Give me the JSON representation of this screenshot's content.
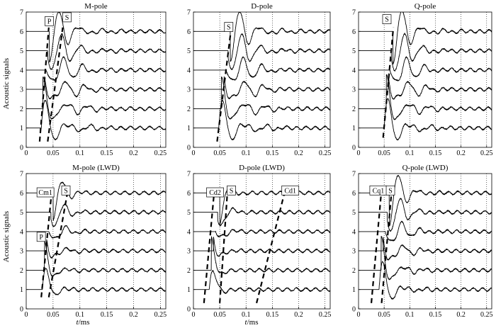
{
  "figure": {
    "ylabel": "Acoustic signals",
    "xlabel_italic": "t",
    "xlabel_rest": "/ms"
  },
  "chart_data": [
    {
      "type": "line",
      "title": "M-pole",
      "xlim": [
        0,
        0.26
      ],
      "ylim": [
        0,
        7
      ],
      "xticks": [
        "0",
        "0.05",
        "0.1",
        "0.15",
        "0.2",
        "0.25"
      ],
      "yticks": [
        "0",
        "1",
        "2",
        "3",
        "4",
        "5",
        "6",
        "7"
      ],
      "grid": "vertical dotted",
      "series_offsets": [
        1,
        2,
        3,
        4,
        5,
        6
      ],
      "labels": [
        "P",
        "S"
      ],
      "arrivals": [
        {
          "label": "P",
          "x": [
            0.025,
            0.042
          ],
          "y": [
            0.3,
            6.2
          ]
        },
        {
          "label": "S",
          "x": [
            0.04,
            0.068
          ],
          "y": [
            0.3,
            6.2
          ]
        }
      ],
      "onset": [
        0.028,
        0.031,
        0.034,
        0.037,
        0.04,
        0.043
      ],
      "wave": {
        "amp": 0.55,
        "freq": 25,
        "decay": 35
      }
    },
    {
      "type": "line",
      "title": "D-pole",
      "xlim": [
        0,
        0.26
      ],
      "ylim": [
        0,
        7
      ],
      "xticks": [
        "0",
        "0.05",
        "0.1",
        "0.15",
        "0.2",
        "0.25"
      ],
      "yticks": [
        "0",
        "1",
        "2",
        "3",
        "4",
        "5",
        "6",
        "7"
      ],
      "grid": "vertical dotted",
      "series_offsets": [
        1,
        2,
        3,
        4,
        5,
        6
      ],
      "labels": [
        "S"
      ],
      "arrivals": [
        {
          "label": "S",
          "x": [
            0.045,
            0.072
          ],
          "y": [
            0.3,
            6.2
          ]
        }
      ],
      "onset": [
        0.048,
        0.053,
        0.058,
        0.062,
        0.066,
        0.07
      ],
      "wave": {
        "amp": 0.55,
        "freq": 25,
        "decay": 35
      }
    },
    {
      "type": "line",
      "title": "Q-pole",
      "xlim": [
        0,
        0.26
      ],
      "ylim": [
        0,
        7
      ],
      "xticks": [
        "0",
        "0.05",
        "0.1",
        "0.15",
        "0.2",
        "0.25"
      ],
      "yticks": [
        "0",
        "1",
        "2",
        "3",
        "4",
        "5",
        "6",
        "7"
      ],
      "grid": "vertical dotted",
      "series_offsets": [
        1,
        2,
        3,
        4,
        5,
        6
      ],
      "labels": [
        "S"
      ],
      "arrivals": [
        {
          "label": "S",
          "x": [
            0.048,
            0.068
          ],
          "y": [
            0.5,
            6.2
          ]
        }
      ],
      "onset": [
        0.05,
        0.054,
        0.058,
        0.061,
        0.064,
        0.067
      ],
      "wave": {
        "amp": 0.6,
        "freq": 25,
        "decay": 32
      }
    },
    {
      "type": "line",
      "title": "M-pole (LWD)",
      "xlim": [
        0,
        0.26
      ],
      "ylim": [
        0,
        7
      ],
      "xticks": [
        "0",
        "0.05",
        "0.1",
        "0.15",
        "0.2",
        "0.25"
      ],
      "yticks": [
        "0",
        "1",
        "2",
        "3",
        "4",
        "5",
        "6",
        "7"
      ],
      "grid": "vertical dotted",
      "series_offsets": [
        1,
        2,
        3,
        4,
        5,
        6
      ],
      "labels": [
        "Cm1",
        "P",
        "S"
      ],
      "arrivals": [
        {
          "label": "P",
          "x": [
            0.028,
            0.048
          ],
          "y": [
            0.6,
            6.2
          ]
        },
        {
          "label": "S",
          "x": [
            0.042,
            0.078
          ],
          "y": [
            0.6,
            6.2
          ]
        }
      ],
      "onset": [
        0.03,
        0.034,
        0.038,
        0.042,
        0.046,
        0.05
      ],
      "wave": {
        "amp": 0.5,
        "freq": 25,
        "decay": 18
      }
    },
    {
      "type": "line",
      "title": "D-pole (LWD)",
      "xlim": [
        0,
        0.26
      ],
      "ylim": [
        0,
        7
      ],
      "xticks": [
        "0",
        "0.05",
        "0.1",
        "0.15",
        "0.2",
        "0.25"
      ],
      "yticks": [
        "0",
        "1",
        "2",
        "3",
        "4",
        "5",
        "6",
        "7"
      ],
      "grid": "vertical dotted",
      "series_offsets": [
        1,
        2,
        3,
        4,
        5,
        6
      ],
      "labels": [
        "Cd2",
        "S",
        "Cd1"
      ],
      "arrivals": [
        {
          "label": "Cd2",
          "x": [
            0.02,
            0.04
          ],
          "y": [
            0.3,
            6.2
          ]
        },
        {
          "label": "S",
          "x": [
            0.05,
            0.065
          ],
          "y": [
            0.3,
            6.2
          ]
        },
        {
          "label": "Cd1",
          "x": [
            0.12,
            0.175
          ],
          "y": [
            0.3,
            6.2
          ]
        }
      ],
      "onset": [
        0.03,
        0.034,
        0.038,
        0.042,
        0.046,
        0.05
      ],
      "wave": {
        "amp": 0.6,
        "freq": 20,
        "decay": 12
      }
    },
    {
      "type": "line",
      "title": "Q-pole (LWD)",
      "xlim": [
        0,
        0.26
      ],
      "ylim": [
        0,
        7
      ],
      "xticks": [
        "0",
        "0.05",
        "0.1",
        "0.15",
        "0.2",
        "0.25"
      ],
      "yticks": [
        "0",
        "1",
        "2",
        "3",
        "4",
        "5",
        "6",
        "7"
      ],
      "grid": "vertical dotted",
      "series_offsets": [
        1,
        2,
        3,
        4,
        5,
        6
      ],
      "labels": [
        "Cq1",
        "S"
      ],
      "arrivals": [
        {
          "label": "Cq1",
          "x": [
            0.025,
            0.045
          ],
          "y": [
            0.3,
            6.2
          ]
        },
        {
          "label": "S",
          "x": [
            0.045,
            0.065
          ],
          "y": [
            0.3,
            6.2
          ]
        }
      ],
      "onset": [
        0.04,
        0.044,
        0.048,
        0.052,
        0.056,
        0.06
      ],
      "wave": {
        "amp": 0.6,
        "freq": 25,
        "decay": 25
      }
    }
  ]
}
